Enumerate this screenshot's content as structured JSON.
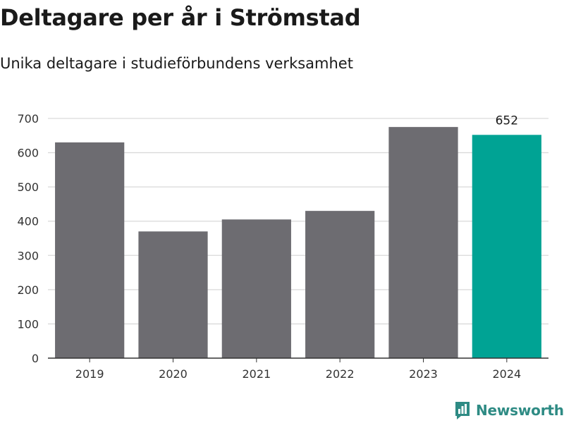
{
  "chart_data": {
    "type": "bar",
    "title": "Deltagare per år i Strömstad",
    "subtitle": "Unika deltagare i studieförbundens verksamhet",
    "xlabel": "",
    "ylabel": "",
    "categories": [
      "2019",
      "2020",
      "2021",
      "2022",
      "2023",
      "2024"
    ],
    "values": [
      630,
      370,
      405,
      430,
      675,
      652
    ],
    "ylim": [
      0,
      700
    ],
    "yticks": [
      0,
      100,
      200,
      300,
      400,
      500,
      600,
      700
    ],
    "grid": true,
    "highlight_index": 5,
    "highlight_label": "652",
    "colors": {
      "bar": "#6d6c71",
      "highlight": "#00a394",
      "grid": "#d9d9d9",
      "axis": "#333333"
    }
  },
  "brand": {
    "name": "Newsworthy",
    "icon": "newsworthy-logo-icon",
    "color": "#2e8b84"
  }
}
